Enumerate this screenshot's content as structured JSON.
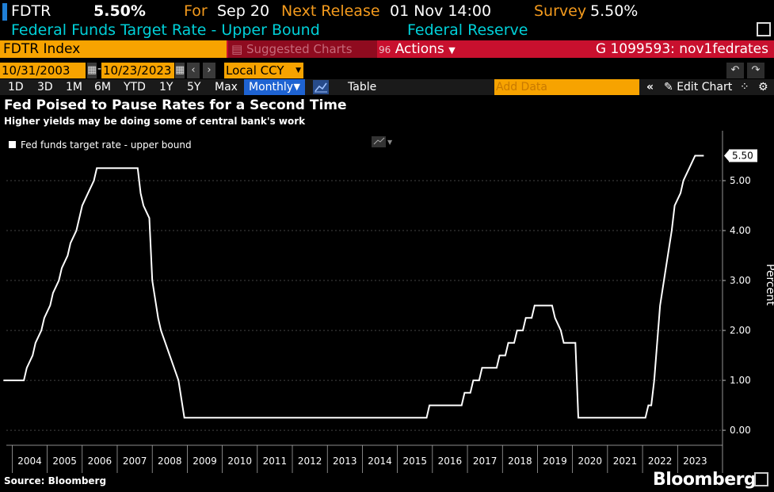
{
  "header": {
    "ticker_short": "FDTR",
    "value": "5.50%",
    "for_label": "For",
    "for_date": "Sep 20",
    "next_label": "Next Release",
    "next_date": "01 Nov 14:00",
    "survey_label": "Survey",
    "survey_value": "5.50%",
    "description": "Federal Funds Target Rate - Upper Bound",
    "source_org": "Federal Reserve"
  },
  "toolbar": {
    "ticker": "FDTR Index",
    "suggested": "Suggested Charts",
    "actions_num": "96",
    "actions": "Actions",
    "gcode": "G 1099593: nov1fedrates",
    "start_date": "10/31/2003",
    "end_date": "10/23/2023",
    "currency": "Local CCY",
    "ranges": [
      "1D",
      "3D",
      "1M",
      "6M",
      "YTD",
      "1Y",
      "5Y",
      "Max"
    ],
    "frequency": "Monthly",
    "table": "Table",
    "add_data_placeholder": "Add Data",
    "edit_chart": "Edit Chart"
  },
  "footer": {
    "source": "Source: Bloomberg",
    "brand": "Bloomberg"
  },
  "colors": {
    "accent_orange": "#f7a300",
    "accent_red": "#c8102e",
    "accent_cyan": "#00d0d8",
    "accent_blue": "#1e63d2"
  },
  "chart_data": {
    "type": "line",
    "title": "Fed Poised to Pause Rates for a Second Time",
    "subtitle": "Higher yields may be doing some of central bank's work",
    "ylabel": "Percent",
    "ylim": [
      -0.3,
      6.0
    ],
    "yticks": [
      "0.00",
      "1.00",
      "2.00",
      "3.00",
      "4.00",
      "5.00"
    ],
    "x_categories": [
      "2004",
      "2005",
      "2006",
      "2007",
      "2008",
      "2009",
      "2010",
      "2011",
      "2012",
      "2013",
      "2014",
      "2015",
      "2016",
      "2017",
      "2018",
      "2019",
      "2020",
      "2021",
      "2022",
      "2023"
    ],
    "last_value_label": "5.50",
    "series": [
      {
        "name": "Fed funds target rate - upper bound",
        "color": "#ffffff",
        "points": [
          [
            "2003-10",
            1.0
          ],
          [
            "2004-05",
            1.0
          ],
          [
            "2004-06",
            1.25
          ],
          [
            "2004-08",
            1.5
          ],
          [
            "2004-09",
            1.75
          ],
          [
            "2004-11",
            2.0
          ],
          [
            "2004-12",
            2.25
          ],
          [
            "2005-02",
            2.5
          ],
          [
            "2005-03",
            2.75
          ],
          [
            "2005-05",
            3.0
          ],
          [
            "2005-06",
            3.25
          ],
          [
            "2005-08",
            3.5
          ],
          [
            "2005-09",
            3.75
          ],
          [
            "2005-11",
            4.0
          ],
          [
            "2005-12",
            4.25
          ],
          [
            "2006-01",
            4.5
          ],
          [
            "2006-03",
            4.75
          ],
          [
            "2006-05",
            5.0
          ],
          [
            "2006-06",
            5.25
          ],
          [
            "2007-08",
            5.25
          ],
          [
            "2007-09",
            4.75
          ],
          [
            "2007-10",
            4.5
          ],
          [
            "2007-12",
            4.25
          ],
          [
            "2008-01",
            3.0
          ],
          [
            "2008-03",
            2.25
          ],
          [
            "2008-04",
            2.0
          ],
          [
            "2008-10",
            1.0
          ],
          [
            "2008-12",
            0.25
          ],
          [
            "2015-11",
            0.25
          ],
          [
            "2015-12",
            0.5
          ],
          [
            "2016-11",
            0.5
          ],
          [
            "2016-12",
            0.75
          ],
          [
            "2017-02",
            0.75
          ],
          [
            "2017-03",
            1.0
          ],
          [
            "2017-05",
            1.0
          ],
          [
            "2017-06",
            1.25
          ],
          [
            "2017-11",
            1.25
          ],
          [
            "2017-12",
            1.5
          ],
          [
            "2018-02",
            1.5
          ],
          [
            "2018-03",
            1.75
          ],
          [
            "2018-05",
            1.75
          ],
          [
            "2018-06",
            2.0
          ],
          [
            "2018-08",
            2.0
          ],
          [
            "2018-09",
            2.25
          ],
          [
            "2018-11",
            2.25
          ],
          [
            "2018-12",
            2.5
          ],
          [
            "2019-06",
            2.5
          ],
          [
            "2019-07",
            2.25
          ],
          [
            "2019-09",
            2.0
          ],
          [
            "2019-10",
            1.75
          ],
          [
            "2020-02",
            1.75
          ],
          [
            "2020-03",
            0.25
          ],
          [
            "2022-02",
            0.25
          ],
          [
            "2022-03",
            0.5
          ],
          [
            "2022-04",
            0.5
          ],
          [
            "2022-05",
            1.0
          ],
          [
            "2022-06",
            1.75
          ],
          [
            "2022-07",
            2.5
          ],
          [
            "2022-09",
            3.25
          ],
          [
            "2022-11",
            4.0
          ],
          [
            "2022-12",
            4.5
          ],
          [
            "2023-02",
            4.75
          ],
          [
            "2023-03",
            5.0
          ],
          [
            "2023-05",
            5.25
          ],
          [
            "2023-07",
            5.5
          ],
          [
            "2023-10",
            5.5
          ]
        ]
      }
    ]
  }
}
